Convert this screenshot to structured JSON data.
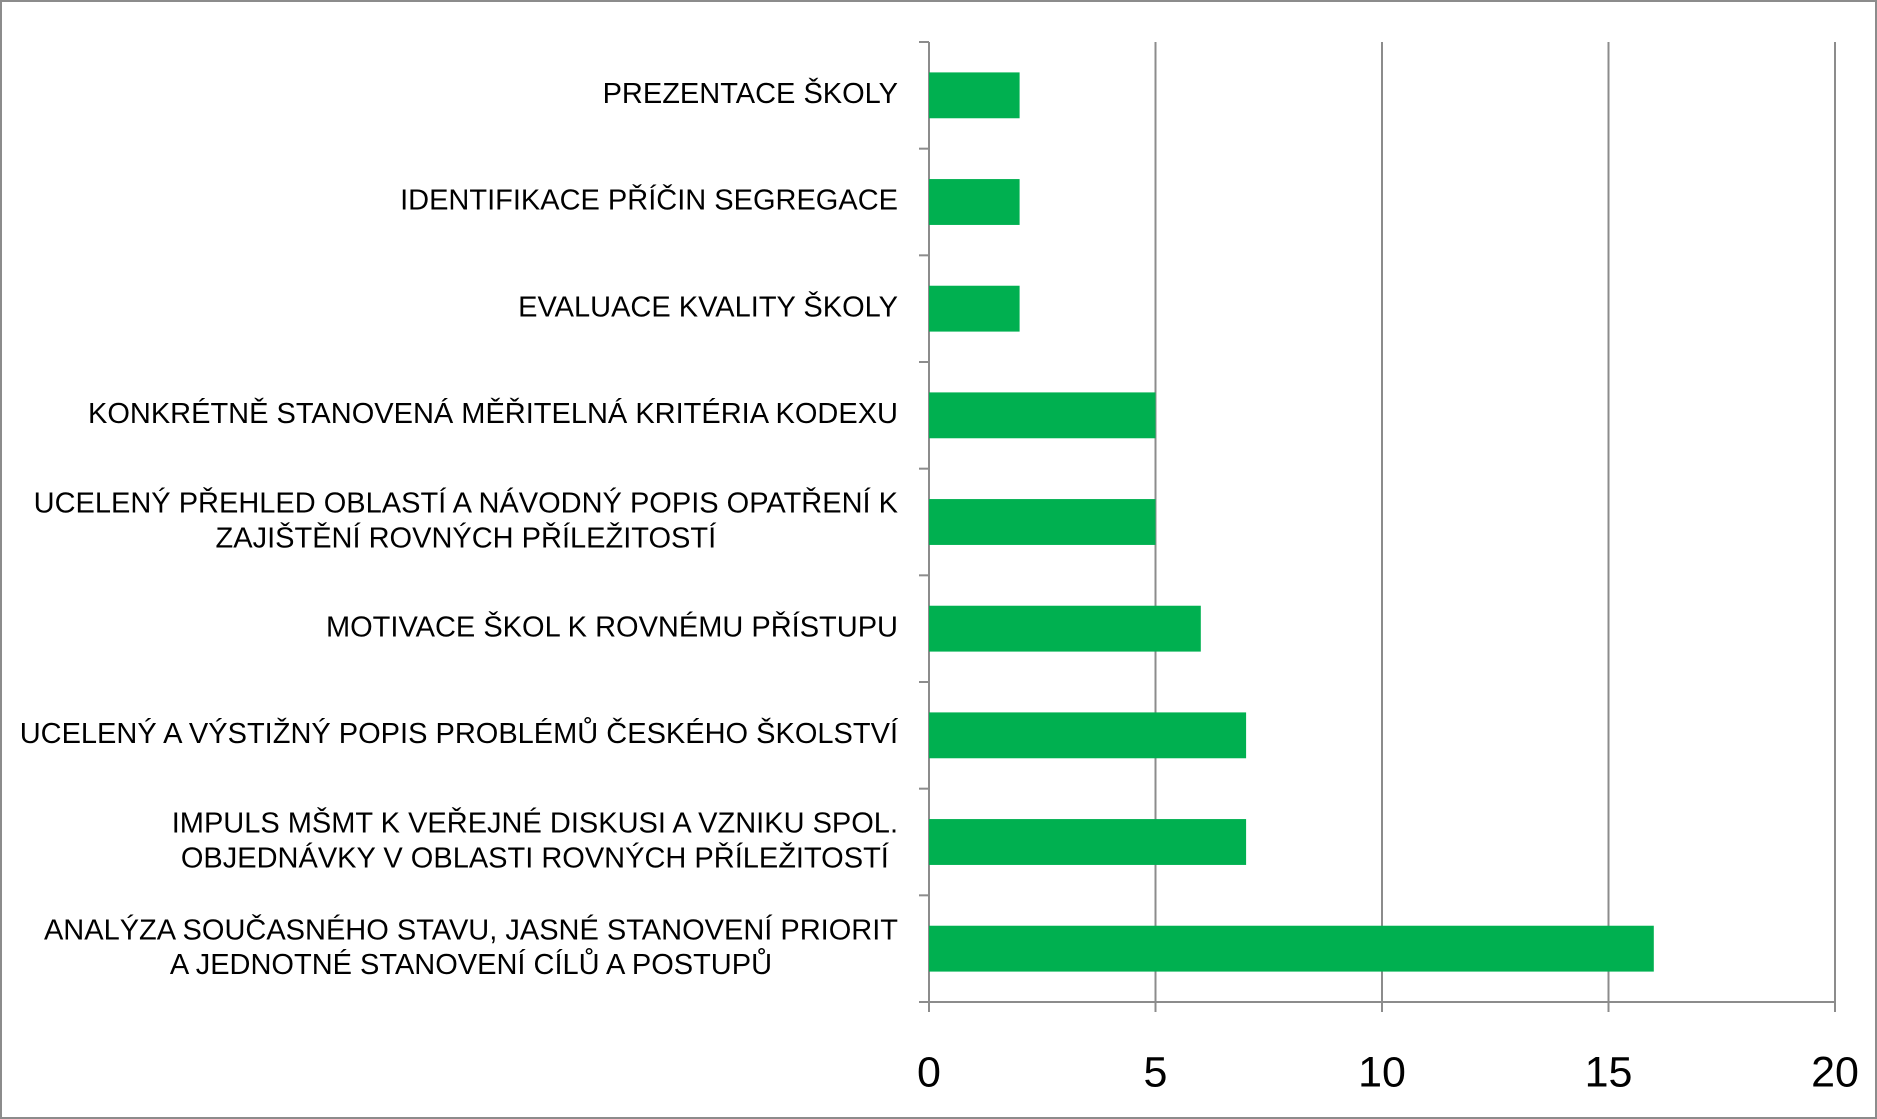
{
  "chart_data": {
    "type": "bar",
    "orientation": "horizontal",
    "categories": [
      "PREZENTACE ŠKOLY",
      "IDENTIFIKACE PŘÍČIN SEGREGACE",
      "EVALUACE KVALITY ŠKOLY",
      "KONKRÉTNĚ STANOVENÁ MĚŘITELNÁ KRITÉRIA KODEXU",
      "UCELENÝ PŘEHLED OBLASTÍ A NÁVODNÝ POPIS OPATŘENÍ K\nZAJIŠTĚNÍ ROVNÝCH PŘÍLEŽITOSTÍ",
      "MOTIVACE ŠKOL K ROVNÉMU PŘÍSTUPU",
      "UCELENÝ A VÝSTIŽNÝ POPIS PROBLÉMŮ ČESKÉHO ŠKOLSTVÍ",
      "IMPULS MŠMT K VEŘEJNÉ DISKUSI A VZNIKU SPOL.\nOBJEDNÁVKY V OBLASTI ROVNÝCH PŘÍLEŽITOSTÍ",
      "ANALÝZA SOUČASNÉHO STAVU, JASNÉ STANOVENÍ PRIORIT\nA JEDNOTNÉ STANOVENÍ CÍLŮ A POSTUPŮ"
    ],
    "values": [
      2,
      2,
      2,
      5,
      5,
      6,
      7,
      7,
      16
    ],
    "color": "#00b050",
    "xlim": [
      0,
      20
    ],
    "xticks": [
      0,
      5,
      10,
      15,
      20
    ],
    "grid": true
  }
}
